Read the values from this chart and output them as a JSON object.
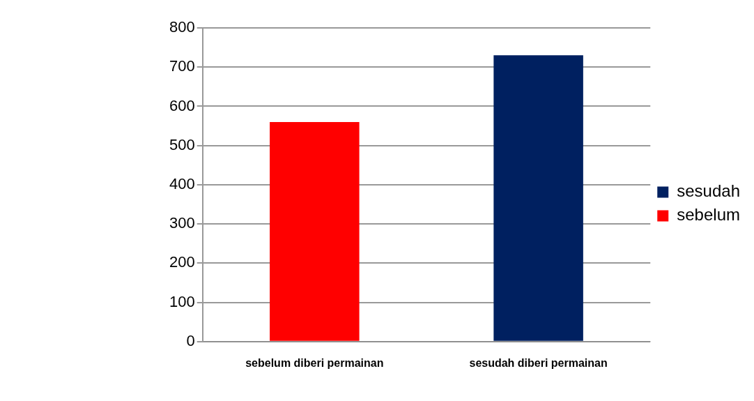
{
  "chart_data": {
    "type": "bar",
    "categories": [
      "sebelum diberi permainan",
      "sesudah diberi permainan"
    ],
    "series": [
      {
        "name": "sesudah",
        "color": "#002060",
        "values": [
          null,
          730
        ]
      },
      {
        "name": "sebelum",
        "color": "#ff0000",
        "values": [
          560,
          null
        ]
      }
    ],
    "ylim": [
      0,
      800
    ],
    "yticks": [
      0,
      100,
      200,
      300,
      400,
      500,
      600,
      700,
      800
    ],
    "grid": "y",
    "legend": "right"
  }
}
